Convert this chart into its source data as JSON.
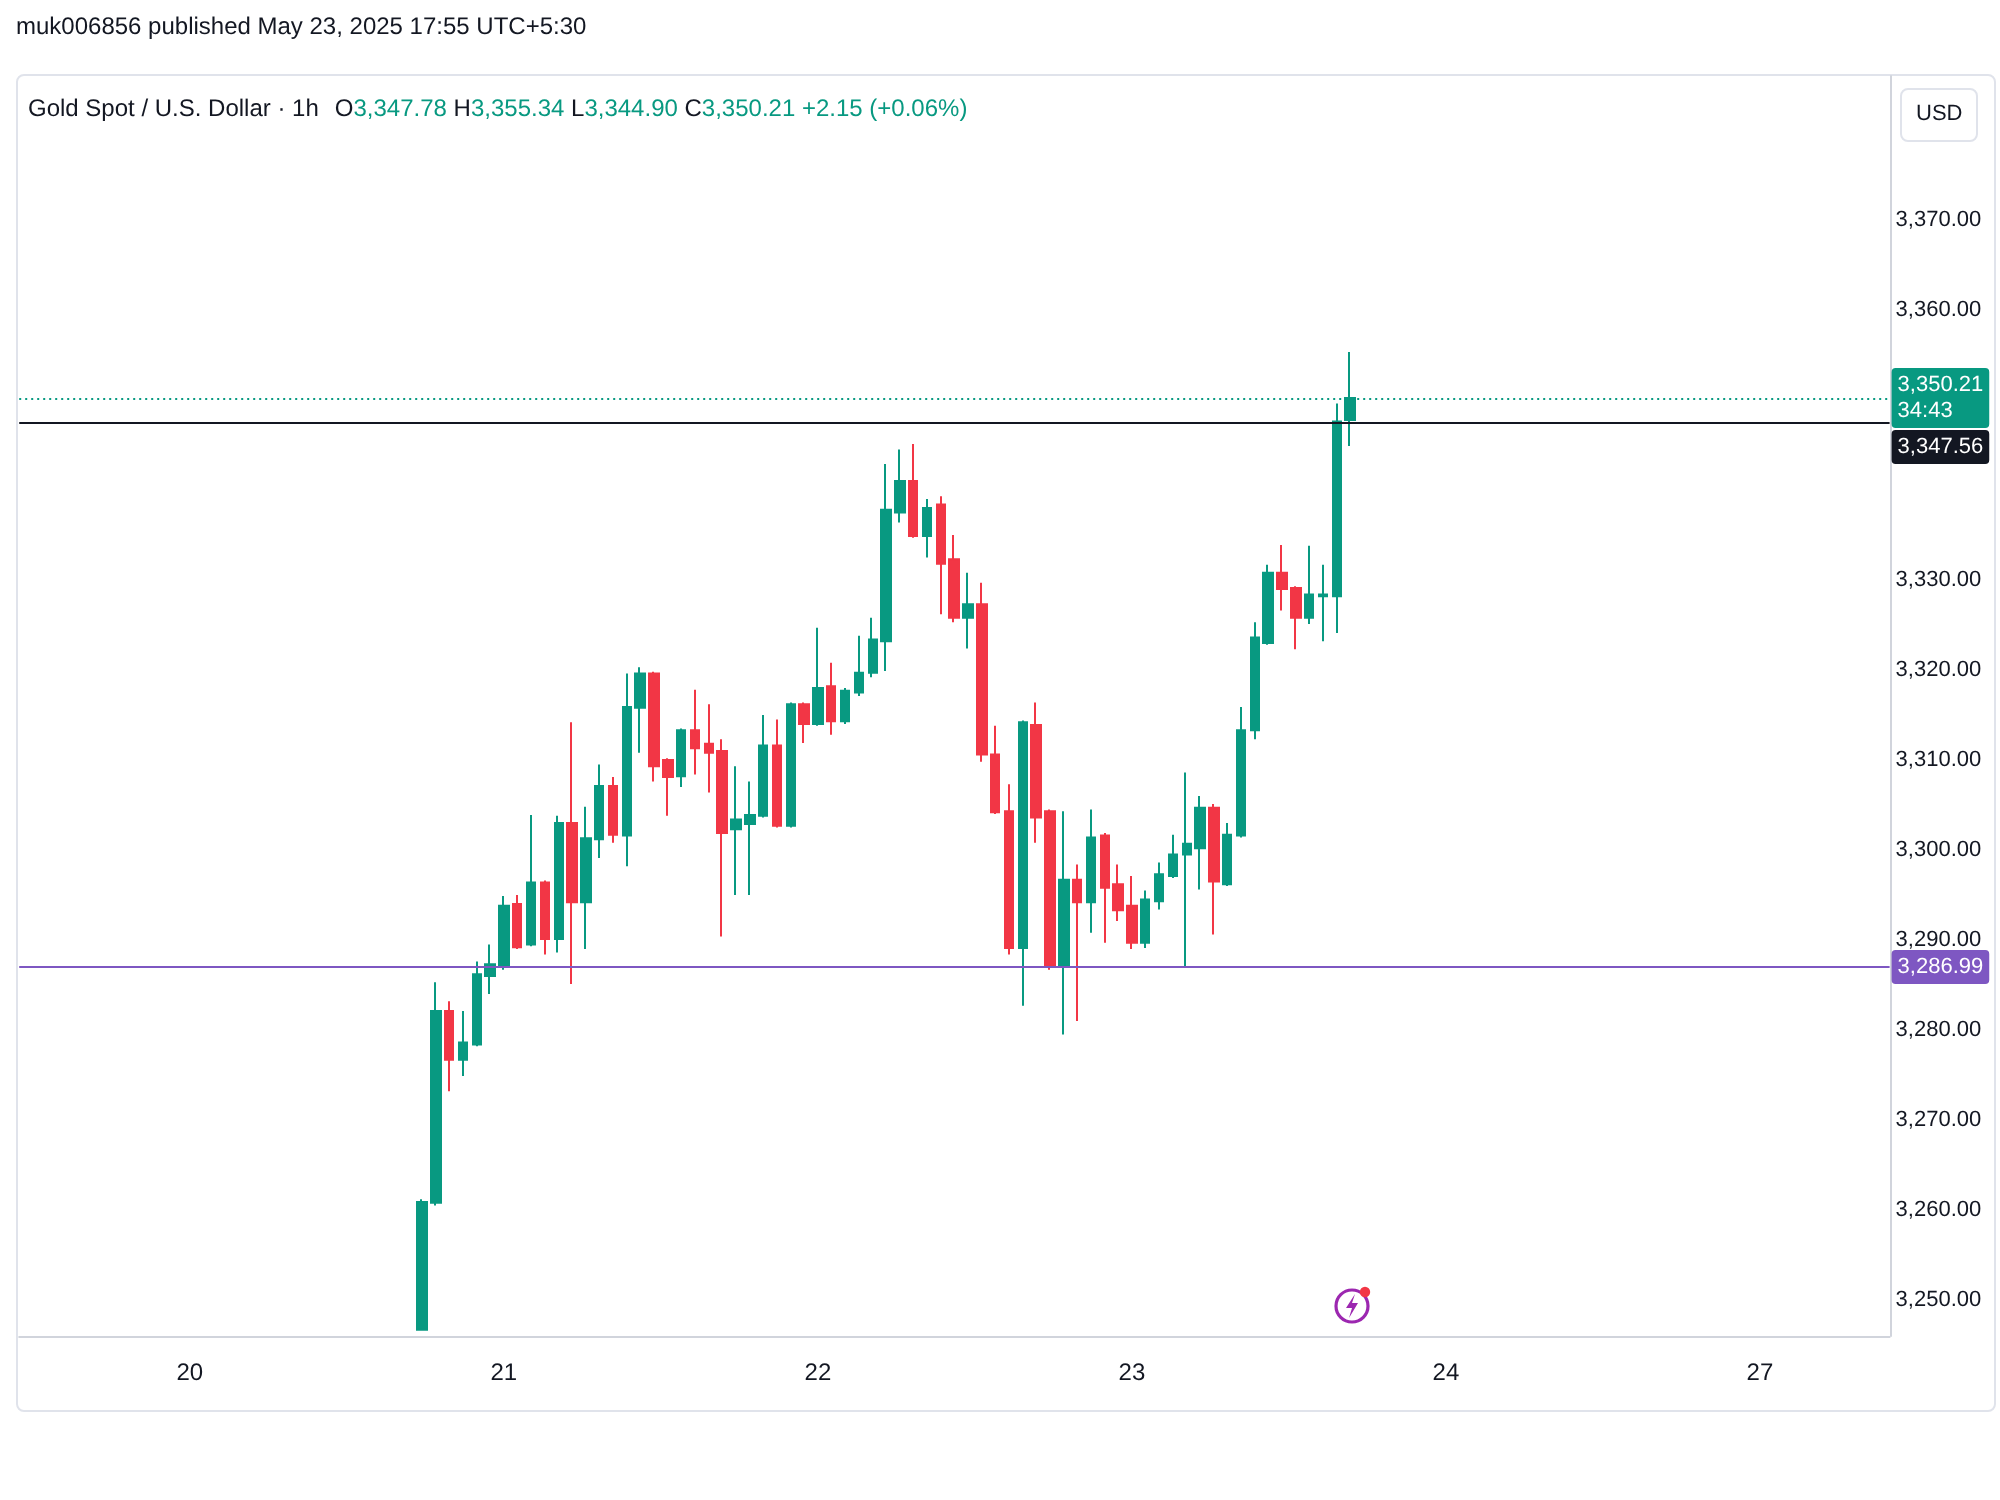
{
  "chart_data": {
    "type": "candlestick",
    "title": "Gold Spot / U.S. Dollar · 1h",
    "subtitle": "O3,347.78 H3,355.34 L3,344.90 C3,350.21 +2.15 (+0.06%)",
    "ylabel": "USD",
    "annotations": [
      "muk006856 published May 23, 2025 17:55 UTC+5:30"
    ],
    "categories": [
      null,
      null,
      null,
      null,
      null,
      null,
      null,
      null,
      null,
      null,
      null,
      null,
      "20",
      null,
      null,
      null,
      null,
      null,
      null,
      null,
      null,
      null,
      null,
      null,
      null,
      null,
      null,
      null,
      null,
      null,
      null,
      null,
      null,
      null,
      null,
      "21",
      null,
      null,
      null,
      null,
      null,
      null,
      null,
      null,
      null,
      null,
      null,
      null,
      null,
      null,
      null,
      null,
      null,
      null,
      null,
      null,
      null,
      null,
      "22",
      null,
      null,
      null,
      null,
      null,
      null,
      null,
      null,
      null,
      null,
      null,
      null,
      null,
      null,
      null,
      null,
      null,
      null,
      null,
      null,
      null,
      null,
      "23",
      null,
      null,
      null,
      null,
      null,
      null,
      null,
      null,
      null,
      null,
      null,
      null,
      null,
      null,
      null,
      null,
      null,
      null,
      null,
      null,
      null,
      null,
      "24",
      null,
      null,
      null,
      null,
      null,
      null,
      null,
      null,
      null,
      null,
      null,
      null,
      null,
      null,
      null,
      null,
      null,
      null,
      null,
      null,
      null,
      null,
      "27",
      null,
      null,
      null,
      null,
      null,
      null,
      null,
      null,
      null
    ],
    "ohlc": [
      null,
      null,
      null,
      null,
      null,
      null,
      null,
      null,
      null,
      null,
      null,
      null,
      null,
      null,
      null,
      null,
      null,
      null,
      null,
      null,
      null,
      null,
      null,
      null,
      null,
      null,
      null,
      null,
      null,
      [
        3246.7,
        3261.2,
        3246.7,
        3260.9
      ],
      [
        3260.8,
        3285.3,
        3260.5,
        3282.1
      ],
      [
        3282.1,
        3283.2,
        3273.2,
        3276.7
      ],
      [
        3276.7,
        3282.1,
        3274.9,
        3278.6
      ],
      [
        3278.4,
        3287.6,
        3278.2,
        3286.2
      ],
      [
        3286.0,
        3289.5,
        3284.0,
        3287.3
      ],
      [
        3287.1,
        3294.9,
        3286.7,
        3293.8
      ],
      [
        3294.0,
        3295.0,
        3289.0,
        3289.2
      ],
      [
        3289.5,
        3303.9,
        3289.3,
        3296.4
      ],
      [
        3296.4,
        3296.6,
        3288.4,
        3290.1
      ],
      [
        3290.1,
        3303.8,
        3288.6,
        3303.0
      ],
      [
        3303.0,
        3314.2,
        3285.1,
        3294.2
      ],
      [
        3294.2,
        3304.8,
        3289.0,
        3301.3
      ],
      [
        3301.2,
        3309.5,
        3299.1,
        3307.1
      ],
      [
        3307.1,
        3308.1,
        3300.8,
        3301.7
      ],
      [
        3301.6,
        3319.6,
        3298.2,
        3315.9
      ],
      [
        3315.8,
        3320.3,
        3310.8,
        3319.6
      ],
      [
        3319.6,
        3319.8,
        3307.6,
        3309.3
      ],
      [
        3310.0,
        3310.2,
        3303.8,
        3308.1
      ],
      [
        3308.2,
        3313.5,
        3307.0,
        3313.3
      ],
      [
        3313.3,
        3317.8,
        3308.4,
        3311.3
      ],
      [
        3311.8,
        3316.2,
        3306.4,
        3310.8
      ],
      [
        3311.0,
        3312.3,
        3290.4,
        3301.9
      ],
      [
        3302.3,
        3309.3,
        3295.0,
        3303.4
      ],
      [
        3302.9,
        3307.6,
        3295.0,
        3303.9
      ],
      [
        3303.8,
        3315.0,
        3303.6,
        3311.6
      ],
      [
        3311.6,
        3314.5,
        3302.5,
        3302.7
      ],
      [
        3302.7,
        3316.4,
        3302.5,
        3316.2
      ],
      [
        3316.2,
        3316.4,
        3311.9,
        3314.0
      ],
      [
        3314.0,
        3324.7,
        3313.8,
        3318.0
      ],
      [
        3318.2,
        3320.8,
        3312.8,
        3314.3
      ],
      [
        3314.3,
        3318.0,
        3314.0,
        3317.7
      ],
      [
        3317.5,
        3323.8,
        3317.1,
        3319.7
      ],
      [
        3319.7,
        3325.8,
        3319.2,
        3323.4
      ],
      [
        3323.2,
        3342.9,
        3319.9,
        3337.8
      ],
      [
        3337.5,
        3344.5,
        3336.4,
        3341.0
      ],
      [
        3341.0,
        3345.1,
        3334.7,
        3334.9
      ],
      [
        3334.9,
        3339.0,
        3332.5,
        3338.0
      ],
      [
        3338.4,
        3339.3,
        3326.2,
        3331.8
      ],
      [
        3332.3,
        3335.0,
        3325.3,
        3325.8
      ],
      [
        3325.8,
        3330.8,
        3322.4,
        3327.3
      ],
      [
        3327.3,
        3329.7,
        3309.8,
        3310.6
      ],
      [
        3310.6,
        3313.8,
        3304.0,
        3304.2
      ],
      [
        3304.3,
        3307.3,
        3288.4,
        3289.1
      ],
      [
        3289.1,
        3314.4,
        3282.7,
        3314.2
      ],
      [
        3313.9,
        3316.4,
        3300.8,
        3303.6
      ],
      [
        3304.3,
        3304.5,
        3286.7,
        3287.1
      ],
      [
        3287.1,
        3304.3,
        3279.5,
        3296.7
      ],
      [
        3296.7,
        3298.4,
        3281.0,
        3294.2
      ],
      [
        3294.2,
        3304.5,
        3290.8,
        3301.4
      ],
      [
        3301.6,
        3301.9,
        3289.7,
        3295.8
      ],
      [
        3296.2,
        3298.4,
        3292.1,
        3293.3
      ],
      [
        3293.8,
        3297.1,
        3289.0,
        3289.7
      ],
      [
        3289.7,
        3295.5,
        3289.1,
        3294.5
      ],
      [
        3294.3,
        3298.6,
        3293.4,
        3297.3
      ],
      [
        3297.1,
        3301.7,
        3296.9,
        3299.5
      ],
      [
        3299.5,
        3308.6,
        3287.0,
        3300.7
      ],
      [
        3300.2,
        3306.0,
        3295.6,
        3304.7
      ],
      [
        3304.7,
        3305.1,
        3290.6,
        3296.5
      ],
      [
        3296.2,
        3303.0,
        3296.0,
        3301.7
      ],
      [
        3301.6,
        3315.9,
        3301.4,
        3313.3
      ],
      [
        3313.3,
        3325.3,
        3312.3,
        3323.6
      ],
      [
        3323.0,
        3331.7,
        3322.8,
        3330.8
      ],
      [
        3330.8,
        3333.9,
        3326.6,
        3329.0
      ],
      [
        3329.1,
        3329.3,
        3322.3,
        3325.8
      ],
      [
        3325.8,
        3333.8,
        3325.1,
        3328.4
      ],
      [
        3328.2,
        3331.7,
        3323.2,
        3328.4
      ],
      [
        3328.2,
        3349.6,
        3324.1,
        3347.6
      ],
      [
        3347.78,
        3355.34,
        3344.9,
        3350.21
      ],
      null,
      null,
      null,
      null,
      null,
      null,
      null,
      null,
      null,
      null,
      null,
      null,
      null,
      null,
      null,
      null,
      null,
      null,
      null,
      null,
      null,
      null,
      null,
      null,
      null,
      null,
      null,
      null,
      null,
      null,
      null,
      null,
      null,
      null,
      null,
      null,
      null,
      null,
      null
    ],
    "colors": [
      null,
      null,
      null,
      null,
      null,
      null,
      null,
      null,
      null,
      null,
      null,
      null,
      null,
      null,
      null,
      null,
      null,
      null,
      null,
      null,
      null,
      null,
      null,
      null,
      null,
      null,
      null,
      null,
      null,
      "#089981",
      "#089981",
      "#f23645",
      "#089981",
      "#089981",
      "#089981",
      "#089981",
      "#f23645",
      "#089981",
      "#f23645",
      "#089981",
      "#f23645",
      "#089981",
      "#089981",
      "#f23645",
      "#089981",
      "#089981",
      "#f23645",
      "#f23645",
      "#089981",
      "#f23645",
      "#f23645",
      "#f23645",
      "#089981",
      "#089981",
      "#089981",
      "#f23645",
      "#089981",
      "#f23645",
      "#089981",
      "#f23645",
      "#089981",
      "#089981",
      "#089981",
      "#089981",
      "#089981",
      "#f23645",
      "#089981",
      "#f23645",
      "#f23645",
      "#089981",
      "#f23645",
      "#f23645",
      "#f23645",
      "#089981",
      "#f23645",
      "#f23645",
      "#089981",
      "#f23645",
      "#089981",
      "#f23645",
      "#f23645",
      "#f23645",
      "#089981",
      "#089981",
      "#089981",
      "#089981",
      "#089981",
      "#f23645",
      "#089981",
      "#089981",
      "#089981",
      "#089981",
      "#f23645",
      "#f23645",
      "#089981",
      "#089981",
      "#089981",
      "#089981",
      null,
      null,
      null,
      null,
      null,
      null,
      null,
      null,
      null,
      null,
      null,
      null,
      null,
      null,
      null,
      null,
      null,
      null,
      null,
      null,
      null,
      null,
      null,
      null,
      null,
      null,
      null,
      null,
      null,
      null,
      null,
      null,
      null,
      null,
      null,
      null,
      null,
      null,
      null
    ],
    "ylim": [
      3246,
      3386
    ],
    "yticks": [
      {
        "value": 3250,
        "label": "3,250.00"
      },
      {
        "value": 3260,
        "label": "3,260.00"
      },
      {
        "value": 3270,
        "label": "3,270.00"
      },
      {
        "value": 3280,
        "label": "3,280.00"
      },
      {
        "value": 3290,
        "label": "3,290.00"
      },
      {
        "value": 3300,
        "label": "3,300.00"
      },
      {
        "value": 3310,
        "label": "3,310.00"
      },
      {
        "value": 3320,
        "label": "3,320.00"
      },
      {
        "value": 3330,
        "label": "3,330.00"
      },
      {
        "value": 3360,
        "label": "3,360.00"
      },
      {
        "value": 3370,
        "label": "3,370.00"
      }
    ],
    "ref_lines": [
      {
        "axis": "y",
        "value": 3350.21,
        "label": "3,350.21\n34:43",
        "color": "#089981",
        "line_style": "dotted"
      },
      {
        "axis": "y",
        "value": 3347.56,
        "label": "3,347.56",
        "color": "#131722",
        "line_style": "solid"
      },
      {
        "axis": "y",
        "value": 3286.99,
        "label": "3,286.99",
        "color": "#7e57c2",
        "line_style": "solid"
      }
    ]
  }
}
